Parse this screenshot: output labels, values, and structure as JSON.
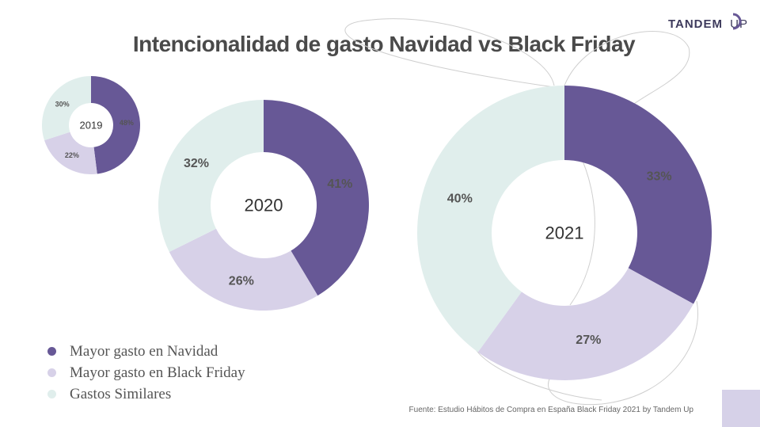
{
  "title": "Intencionalidad de gasto Navidad vs Black Friday",
  "brand": {
    "name": "TANDEM",
    "suffix": "UP"
  },
  "colors": {
    "navidad": "#675896",
    "black_friday": "#d7d1e8",
    "similares": "#e0eeec",
    "curve": "#cfcfcf"
  },
  "legend": [
    {
      "label": "Mayor gasto en Navidad",
      "color": "#675896"
    },
    {
      "label": "Mayor gasto en Black Friday",
      "color": "#d7d1e8"
    },
    {
      "label": "Gastos Similares",
      "color": "#e0eeec"
    }
  ],
  "source": "Fuente: Estudio Hábitos de Compra en España Black Friday 2021  by Tandem Up",
  "chart_data": [
    {
      "type": "pie",
      "center_label": "2019",
      "categories": [
        "Mayor gasto en Navidad",
        "Mayor gasto en Black Friday",
        "Gastos Similares"
      ],
      "values": [
        48,
        22,
        30
      ],
      "labels": [
        "48%",
        "22%",
        "30%"
      ]
    },
    {
      "type": "pie",
      "center_label": "2020",
      "categories": [
        "Mayor gasto en Navidad",
        "Mayor gasto en Black Friday",
        "Gastos Similares"
      ],
      "values": [
        41,
        26,
        32
      ],
      "labels": [
        "41%",
        "26%",
        "32%"
      ]
    },
    {
      "type": "pie",
      "center_label": "2021",
      "categories": [
        "Mayor gasto en Navidad",
        "Mayor gasto en Black Friday",
        "Gastos Similares"
      ],
      "values": [
        33,
        27,
        40
      ],
      "labels": [
        "33%",
        "27%",
        "40%"
      ]
    }
  ]
}
